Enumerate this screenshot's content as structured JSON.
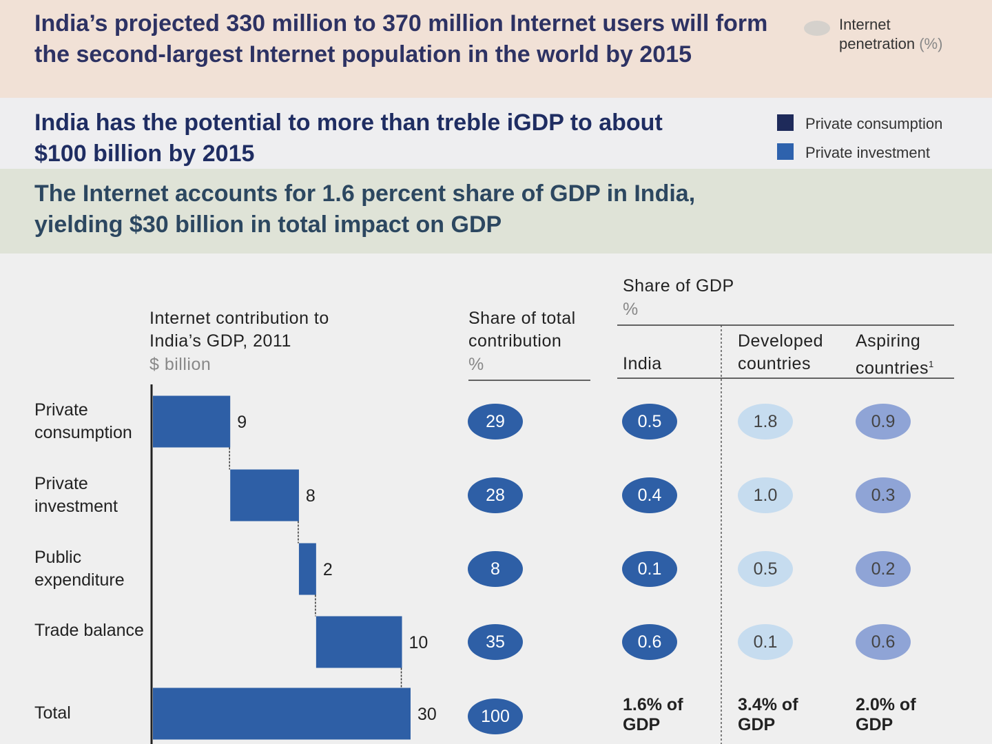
{
  "headers": [
    {
      "title": "India’s projected 330 million to 370 million Internet users will form the second-largest Internet population in the world by 2015",
      "legend": [
        {
          "label": "Internet penetration",
          "unit": "(%)",
          "color": "#d5d1cc"
        }
      ]
    },
    {
      "title": "India has the potential to more than treble iGDP to about $100 billion by 2015",
      "legend": [
        {
          "label": "Private consumption",
          "color": "#1e2a5a"
        },
        {
          "label": "Private investment",
          "color": "#2e62ad"
        }
      ]
    },
    {
      "title": "The Internet accounts for 1.6 percent share of GDP in India, yielding $30 billion in total impact on GDP"
    }
  ],
  "chart_data": {
    "type": "waterfall",
    "title": "Internet contribution to India’s GDP, 2011",
    "unit": "$ billion",
    "categories": [
      "Private consumption",
      "Private investment",
      "Public expenditure",
      "Trade balance",
      "Total"
    ],
    "values": [
      9,
      8,
      2,
      10,
      30
    ],
    "color": "#2e5fa6"
  },
  "share_table": {
    "total_column": {
      "title": "Share of total contribution",
      "unit": "%",
      "values": [
        "29",
        "28",
        "8",
        "35",
        "100"
      ],
      "color": "#2e5fa6",
      "text_color": "#ffffff"
    },
    "title": "Share of GDP",
    "unit": "%",
    "columns": [
      {
        "name": "India",
        "values": [
          "0.5",
          "0.4",
          "0.1",
          "0.6"
        ],
        "total": "1.6% of GDP",
        "color": "#2e5fa6",
        "text_color": "#ffffff"
      },
      {
        "name": "Developed countries",
        "values": [
          "1.8",
          "1.0",
          "0.5",
          "0.1"
        ],
        "total": "3.4% of GDP",
        "color": "#c6dcef",
        "text_color": "#444444"
      },
      {
        "name": "Aspiring countries",
        "footnote": "1",
        "values": [
          "0.9",
          "0.3",
          "0.2",
          "0.6"
        ],
        "total": "2.0% of GDP",
        "color": "#8fa4d6",
        "text_color": "#444444"
      }
    ]
  }
}
